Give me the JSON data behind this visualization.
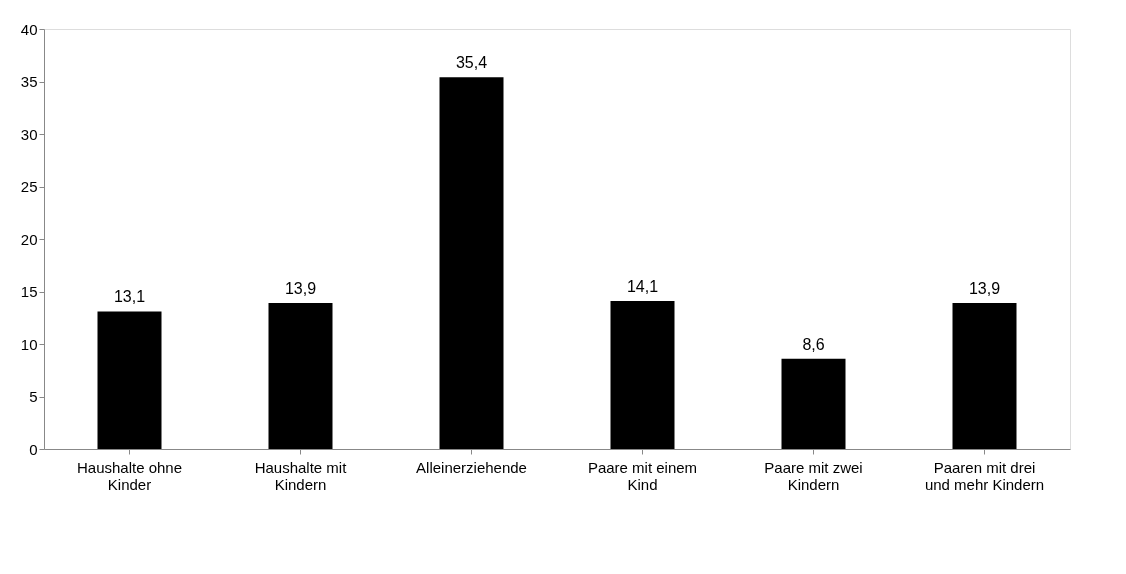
{
  "chart_data": {
    "type": "bar",
    "categories": [
      "Haushalte ohne Kinder",
      "Haushalte mit Kindern",
      "Alleinerziehende",
      "Paare mit einem Kind",
      "Paare mit zwei Kindern",
      "Paaren mit drei und mehr Kindern"
    ],
    "values": [
      13.1,
      13.9,
      35.4,
      14.1,
      8.6,
      13.9
    ],
    "value_labels": [
      "13,1",
      "13,9",
      "35,4",
      "14,1",
      "8,6",
      "13,9"
    ],
    "color": "#000000",
    "ylim": [
      0,
      40
    ],
    "yticks": [
      0,
      5,
      10,
      15,
      20,
      25,
      30,
      35,
      40
    ],
    "grid": false
  }
}
